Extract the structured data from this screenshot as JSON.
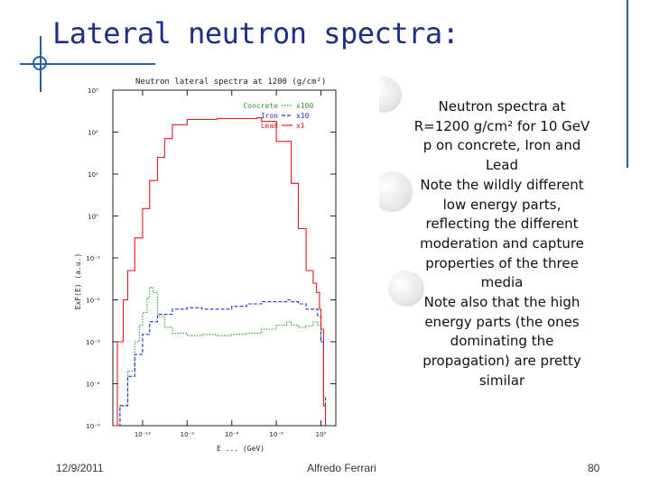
{
  "slide": {
    "title": "Lateral neutron spectra:",
    "note_lines": [
      "Neutron spectra at",
      "R=1200 g/cm² for 10 GeV",
      "p on concrete, Iron and",
      "Lead",
      "Note the wildly different",
      "low energy parts,",
      "reflecting the different",
      "moderation and capture",
      "properties of the three",
      "media",
      "Note also that the high",
      "energy parts (the ones",
      "dominating the",
      "propagation) are pretty",
      "similar"
    ],
    "footer": {
      "date": "12/9/2011",
      "author": "Alfredo Ferrari",
      "page": "80"
    }
  },
  "chart_data": {
    "type": "line",
    "title": "Neutron lateral spectra at 1200 (g/cm²)",
    "xlabel": "E ... (GeV)",
    "ylabel": "ExF(E) (a.u.)",
    "x_scale": "log",
    "y_scale": "log",
    "xlim": [
      1e-14,
      10
    ],
    "ylim": [
      1e-05,
      1000
    ],
    "x_ticks": [
      {
        "value": 1e-12,
        "label": "10⁻¹²"
      },
      {
        "value": 1e-09,
        "label": "10⁻⁹"
      },
      {
        "value": 1e-06,
        "label": "10⁻⁶"
      },
      {
        "value": 0.001,
        "label": "10⁻³"
      },
      {
        "value": 1,
        "label": "10⁰"
      }
    ],
    "y_ticks": [
      {
        "value": 1000,
        "label": "10³"
      },
      {
        "value": 100,
        "label": "10²"
      },
      {
        "value": 10,
        "label": "10¹"
      },
      {
        "value": 1,
        "label": "10⁰"
      },
      {
        "value": 0.1,
        "label": "10⁻¹"
      },
      {
        "value": 0.01,
        "label": "10⁻²"
      },
      {
        "value": 0.001,
        "label": "10⁻³"
      },
      {
        "value": 0.0001,
        "label": "10⁻⁴"
      },
      {
        "value": 1e-05,
        "label": "10⁻⁵"
      }
    ],
    "legend_position": "top-right",
    "series": [
      {
        "name": "Concrete",
        "scale": "x100",
        "color": "#2f9c2f",
        "style": "dotted",
        "points": [
          [
            1e-14,
            1e-05
          ],
          [
            3e-14,
            3e-05
          ],
          [
            1e-13,
            0.0002
          ],
          [
            3e-13,
            0.001
          ],
          [
            6e-13,
            0.0025
          ],
          [
            1e-12,
            0.005
          ],
          [
            2e-12,
            0.011
          ],
          [
            3e-12,
            0.02
          ],
          [
            5e-12,
            0.015
          ],
          [
            1e-11,
            0.004
          ],
          [
            3e-11,
            0.0022
          ],
          [
            1e-10,
            0.0016
          ],
          [
            1e-09,
            0.0014
          ],
          [
            1e-08,
            0.0015
          ],
          [
            1e-07,
            0.0014
          ],
          [
            1e-06,
            0.0015
          ],
          [
            1e-05,
            0.0016
          ],
          [
            0.0001,
            0.002
          ],
          [
            0.001,
            0.0025
          ],
          [
            0.005,
            0.003
          ],
          [
            0.01,
            0.0025
          ],
          [
            0.03,
            0.0022
          ],
          [
            0.1,
            0.0024
          ],
          [
            0.3,
            0.003
          ],
          [
            0.6,
            0.0025
          ],
          [
            1,
            0.001
          ],
          [
            1.5,
            3e-05
          ],
          [
            2,
            1e-05
          ]
        ]
      },
      {
        "name": "Iron",
        "scale": "x10",
        "color": "#2233cc",
        "style": "dashed",
        "points": [
          [
            1e-14,
            1e-05
          ],
          [
            3e-14,
            3e-05
          ],
          [
            1e-13,
            0.00015
          ],
          [
            3e-13,
            0.0005
          ],
          [
            1e-12,
            0.0015
          ],
          [
            3e-12,
            0.003
          ],
          [
            1e-11,
            0.0045
          ],
          [
            1e-10,
            0.006
          ],
          [
            1e-09,
            0.0065
          ],
          [
            1e-08,
            0.006
          ],
          [
            1e-07,
            0.006
          ],
          [
            1e-06,
            0.007
          ],
          [
            1e-05,
            0.008
          ],
          [
            0.0001,
            0.009
          ],
          [
            0.001,
            0.009
          ],
          [
            0.005,
            0.01
          ],
          [
            0.01,
            0.009
          ],
          [
            0.03,
            0.008
          ],
          [
            0.1,
            0.006
          ],
          [
            0.3,
            0.006
          ],
          [
            0.6,
            0.004
          ],
          [
            1,
            0.001
          ],
          [
            1.5,
            5e-05
          ],
          [
            2,
            1e-05
          ]
        ]
      },
      {
        "name": "Lead",
        "scale": "x1",
        "color": "#e41a1c",
        "style": "solid",
        "points": [
          [
            1e-14,
            1e-05
          ],
          [
            2e-14,
            0.001
          ],
          [
            5e-14,
            0.01
          ],
          [
            1e-13,
            0.05
          ],
          [
            3e-13,
            0.3
          ],
          [
            1e-12,
            1.5
          ],
          [
            3e-12,
            7
          ],
          [
            1e-11,
            25
          ],
          [
            3e-11,
            70
          ],
          [
            1e-10,
            150
          ],
          [
            1e-09,
            200
          ],
          [
            1e-08,
            200
          ],
          [
            1e-07,
            210
          ],
          [
            1e-06,
            210
          ],
          [
            1e-05,
            210
          ],
          [
            5e-05,
            220
          ],
          [
            0.0001,
            180
          ],
          [
            0.001,
            60
          ],
          [
            0.01,
            6
          ],
          [
            0.03,
            0.5
          ],
          [
            0.1,
            0.05
          ],
          [
            0.3,
            0.025
          ],
          [
            0.5,
            0.015
          ],
          [
            0.8,
            0.006
          ],
          [
            1,
            0.002
          ],
          [
            1.5,
            3e-05
          ],
          [
            2,
            1e-05
          ]
        ]
      }
    ]
  }
}
